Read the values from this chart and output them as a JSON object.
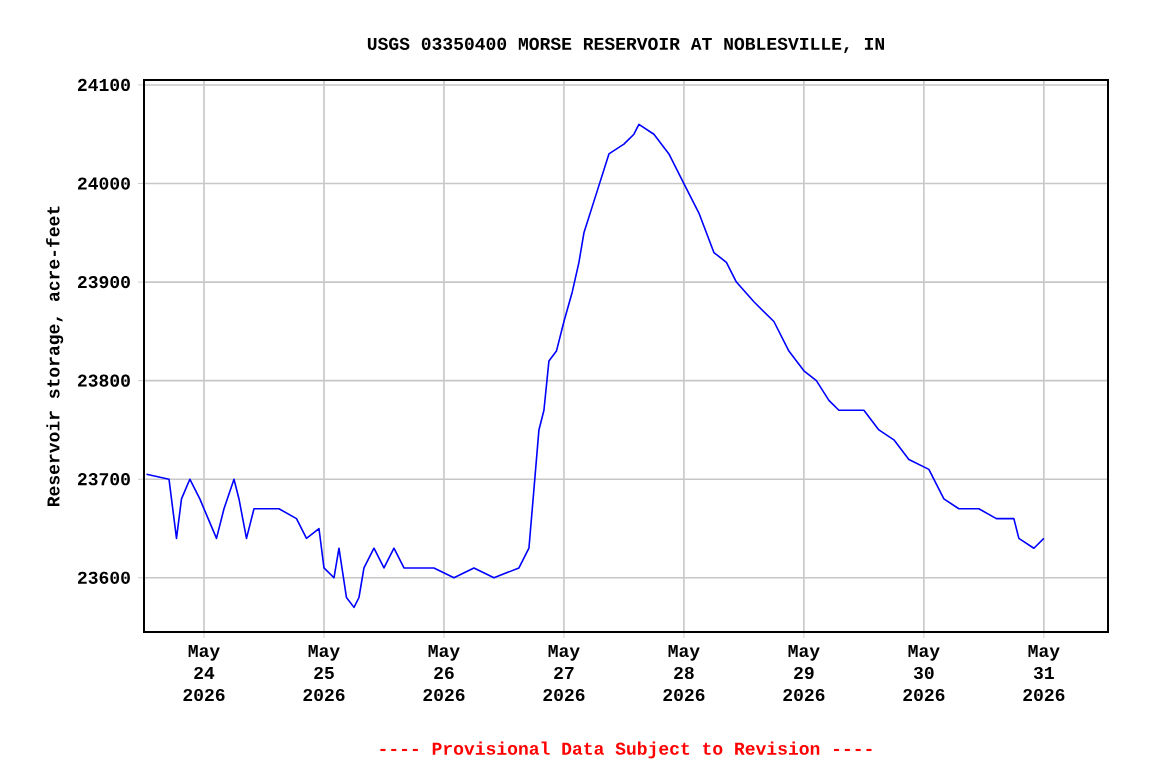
{
  "chart_data": {
    "type": "line",
    "title": "USGS 03350400 MORSE RESERVOIR AT NOBLESVILLE, IN",
    "ylabel": "Reservoir storage, acre-feet",
    "annotations": [
      "---- Provisional Data Subject to Revision ----"
    ],
    "x": [
      "2026-05-23T12:30",
      "2026-05-23T17:00",
      "2026-05-23T18:30",
      "2026-05-23T19:30",
      "2026-05-23T21:10",
      "2026-05-23T23:10",
      "2026-05-24T02:30",
      "2026-05-24T04:00",
      "2026-05-24T06:00",
      "2026-05-24T07:00",
      "2026-05-24T08:30",
      "2026-05-24T10:00",
      "2026-05-24T15:00",
      "2026-05-24T18:30",
      "2026-05-24T20:30",
      "2026-05-24T23:00",
      "2026-05-25T00:00",
      "2026-05-25T02:00",
      "2026-05-25T03:00",
      "2026-05-25T04:30",
      "2026-05-25T06:00",
      "2026-05-25T07:00",
      "2026-05-25T08:00",
      "2026-05-25T10:00",
      "2026-05-25T12:00",
      "2026-05-25T14:00",
      "2026-05-25T16:00",
      "2026-05-25T22:00",
      "2026-05-26T02:00",
      "2026-05-26T06:00",
      "2026-05-26T10:00",
      "2026-05-26T15:00",
      "2026-05-26T17:00",
      "2026-05-26T18:00",
      "2026-05-26T19:00",
      "2026-05-26T20:00",
      "2026-05-26T21:00",
      "2026-05-26T22:30",
      "2026-05-27T00:00",
      "2026-05-27T01:40",
      "2026-05-27T03:00",
      "2026-05-27T04:00",
      "2026-05-27T06:30",
      "2026-05-27T09:00",
      "2026-05-27T12:00",
      "2026-05-27T14:00",
      "2026-05-27T15:00",
      "2026-05-27T18:00",
      "2026-05-27T21:00",
      "2026-05-28T00:00",
      "2026-05-28T03:00",
      "2026-05-28T06:00",
      "2026-05-28T08:30",
      "2026-05-28T10:30",
      "2026-05-28T14:00",
      "2026-05-28T18:00",
      "2026-05-28T21:00",
      "2026-05-29T00:00",
      "2026-05-29T02:30",
      "2026-05-29T05:00",
      "2026-05-29T07:00",
      "2026-05-29T12:00",
      "2026-05-29T15:00",
      "2026-05-29T18:00",
      "2026-05-29T21:00",
      "2026-05-30T01:00",
      "2026-05-30T04:00",
      "2026-05-30T07:00",
      "2026-05-30T11:00",
      "2026-05-30T14:30",
      "2026-05-30T18:00",
      "2026-05-30T19:00",
      "2026-05-30T22:00",
      "2026-05-31T00:00"
    ],
    "series": [
      {
        "color": "#0000ff",
        "values": [
          23705,
          23700,
          23640,
          23680,
          23700,
          23680,
          23640,
          23670,
          23700,
          23680,
          23640,
          23670,
          23670,
          23660,
          23640,
          23650,
          23610,
          23600,
          23630,
          23580,
          23570,
          23580,
          23610,
          23630,
          23610,
          23630,
          23610,
          23610,
          23600,
          23610,
          23600,
          23610,
          23630,
          23690,
          23750,
          23770,
          23820,
          23830,
          23860,
          23890,
          23920,
          23950,
          23990,
          24030,
          24040,
          24050,
          24060,
          24050,
          24030,
          24000,
          23970,
          23930,
          23920,
          23900,
          23880,
          23860,
          23830,
          23810,
          23800,
          23780,
          23770,
          23770,
          23750,
          23740,
          23720,
          23710,
          23680,
          23670,
          23670,
          23660,
          23660,
          23640,
          23630,
          23640
        ]
      }
    ],
    "xlim": [
      "2026-05-23T12:00",
      "2026-05-31T12:50"
    ],
    "xticks": [
      {
        "value": "2026-05-24",
        "label": "May 24 2026"
      },
      {
        "value": "2026-05-25",
        "label": "May 25 2026"
      },
      {
        "value": "2026-05-26",
        "label": "May 26 2026"
      },
      {
        "value": "2026-05-27",
        "label": "May 27 2026"
      },
      {
        "value": "2026-05-28",
        "label": "May 28 2026"
      },
      {
        "value": "2026-05-29",
        "label": "May 29 2026"
      },
      {
        "value": "2026-05-30",
        "label": "May 30 2026"
      },
      {
        "value": "2026-05-31",
        "label": "May 31 2026"
      }
    ],
    "ylim": [
      23545,
      24105
    ],
    "yticks": [
      23600,
      23700,
      23800,
      23900,
      24000,
      24100
    ],
    "grid": true,
    "marker": "none",
    "line_style": "solid"
  }
}
